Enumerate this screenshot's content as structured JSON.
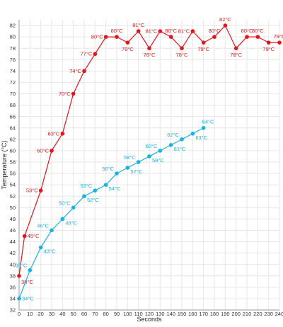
{
  "chart_data": {
    "type": "line",
    "xlabel": "Seconds",
    "ylabel": "Temperature (°C)",
    "xlim": [
      0,
      240
    ],
    "ylim": [
      32,
      83
    ],
    "x_ticks": [
      0,
      10,
      20,
      30,
      40,
      50,
      60,
      70,
      80,
      90,
      100,
      110,
      120,
      130,
      140,
      150,
      160,
      170,
      180,
      190,
      200,
      210,
      220,
      230,
      240
    ],
    "y_ticks": [
      32,
      34,
      36,
      38,
      40,
      42,
      44,
      46,
      48,
      50,
      52,
      54,
      56,
      58,
      60,
      62,
      64,
      66,
      68,
      70,
      72,
      74,
      76,
      78,
      80,
      82
    ],
    "grid": true,
    "label_unit": "°C",
    "series": [
      {
        "color": "#e3151b",
        "x": [
          0,
          5,
          20,
          30,
          40,
          50,
          60,
          70,
          80,
          90,
          100,
          110,
          120,
          130,
          140,
          150,
          160,
          170,
          180,
          190,
          200,
          210,
          220,
          230,
          240
        ],
        "y": [
          38,
          45,
          53,
          60,
          63,
          70,
          74,
          77,
          80,
          80,
          79,
          81,
          78,
          81,
          80,
          78,
          81,
          79,
          80,
          82,
          78,
          80,
          80,
          79,
          79
        ]
      },
      {
        "color": "#1ab2e0",
        "x": [
          0,
          10,
          20,
          30,
          40,
          50,
          60,
          70,
          80,
          90,
          100,
          110,
          120,
          130,
          140,
          150,
          160,
          170
        ],
        "y": [
          34,
          39,
          43,
          46,
          48,
          50,
          52,
          53,
          54,
          56,
          57,
          58,
          59,
          60,
          61,
          62,
          63,
          64
        ]
      }
    ]
  }
}
